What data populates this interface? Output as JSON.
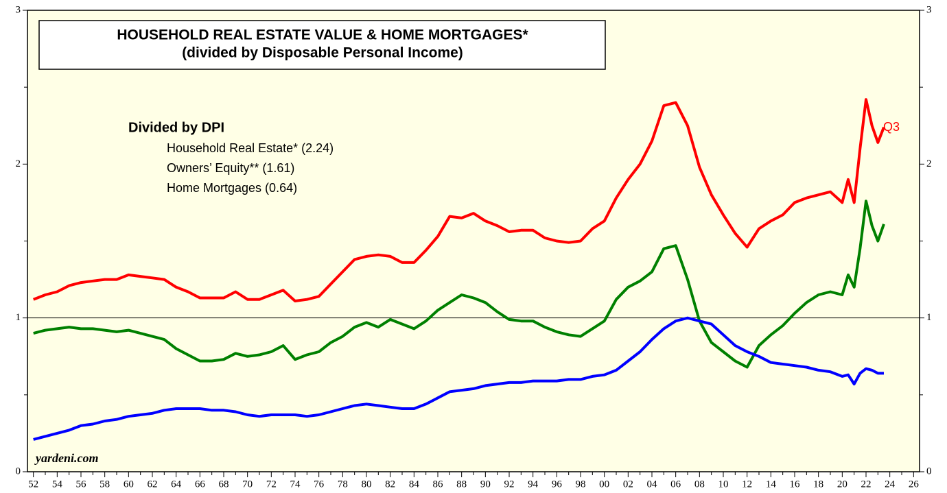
{
  "chart_data": {
    "type": "line",
    "title": "HOUSEHOLD REAL ESTATE VALUE & HOME MORTGAGES*",
    "subtitle": "(divided by Disposable Personal Income)",
    "legend_title": "Divided by DPI",
    "annotations": [
      "Q3",
      "yardeni.com"
    ],
    "x": [
      1952,
      1953,
      1954,
      1955,
      1956,
      1957,
      1958,
      1959,
      1960,
      1961,
      1962,
      1963,
      1964,
      1965,
      1966,
      1967,
      1968,
      1969,
      1970,
      1971,
      1972,
      1973,
      1974,
      1975,
      1976,
      1977,
      1978,
      1979,
      1980,
      1981,
      1982,
      1983,
      1984,
      1985,
      1986,
      1987,
      1988,
      1989,
      1990,
      1991,
      1992,
      1993,
      1994,
      1995,
      1996,
      1997,
      1998,
      1999,
      2000,
      2001,
      2002,
      2003,
      2004,
      2005,
      2006,
      2007,
      2008,
      2009,
      2010,
      2011,
      2012,
      2013,
      2014,
      2015,
      2016,
      2017,
      2018,
      2019,
      2020,
      2020.5,
      2021,
      2021.5,
      2022,
      2022.5,
      2023,
      2023.5
    ],
    "series": [
      {
        "name": "Household Real Estate* (2.24)",
        "color": "#ff0000",
        "values": [
          1.12,
          1.15,
          1.17,
          1.21,
          1.23,
          1.24,
          1.25,
          1.25,
          1.28,
          1.27,
          1.26,
          1.25,
          1.2,
          1.17,
          1.13,
          1.13,
          1.13,
          1.17,
          1.12,
          1.12,
          1.15,
          1.18,
          1.11,
          1.12,
          1.14,
          1.22,
          1.3,
          1.38,
          1.4,
          1.41,
          1.4,
          1.36,
          1.36,
          1.44,
          1.53,
          1.66,
          1.65,
          1.68,
          1.63,
          1.6,
          1.56,
          1.57,
          1.57,
          1.52,
          1.5,
          1.49,
          1.5,
          1.58,
          1.63,
          1.78,
          1.9,
          2.0,
          2.15,
          2.38,
          2.4,
          2.25,
          1.98,
          1.8,
          1.67,
          1.55,
          1.46,
          1.58,
          1.63,
          1.67,
          1.75,
          1.78,
          1.8,
          1.82,
          1.75,
          1.9,
          1.75,
          2.1,
          2.42,
          2.25,
          2.14,
          2.24
        ]
      },
      {
        "name": "Owners’ Equity** (1.61)",
        "color": "#008000",
        "values": [
          0.9,
          0.92,
          0.93,
          0.94,
          0.93,
          0.93,
          0.92,
          0.91,
          0.92,
          0.9,
          0.88,
          0.86,
          0.8,
          0.76,
          0.72,
          0.72,
          0.73,
          0.77,
          0.75,
          0.76,
          0.78,
          0.82,
          0.73,
          0.76,
          0.78,
          0.84,
          0.88,
          0.94,
          0.97,
          0.94,
          0.99,
          0.96,
          0.93,
          0.98,
          1.05,
          1.1,
          1.15,
          1.13,
          1.1,
          1.04,
          0.99,
          0.98,
          0.98,
          0.94,
          0.91,
          0.89,
          0.88,
          0.93,
          0.98,
          1.12,
          1.2,
          1.24,
          1.3,
          1.45,
          1.47,
          1.25,
          0.98,
          0.84,
          0.78,
          0.72,
          0.68,
          0.82,
          0.89,
          0.95,
          1.03,
          1.1,
          1.15,
          1.17,
          1.15,
          1.28,
          1.2,
          1.45,
          1.76,
          1.6,
          1.5,
          1.61
        ]
      },
      {
        "name": "Home Mortgages (0.64)",
        "color": "#0000ff",
        "values": [
          0.21,
          0.23,
          0.25,
          0.27,
          0.3,
          0.31,
          0.33,
          0.34,
          0.36,
          0.37,
          0.38,
          0.4,
          0.41,
          0.41,
          0.41,
          0.4,
          0.4,
          0.39,
          0.37,
          0.36,
          0.37,
          0.37,
          0.37,
          0.36,
          0.37,
          0.39,
          0.41,
          0.43,
          0.44,
          0.43,
          0.42,
          0.41,
          0.41,
          0.44,
          0.48,
          0.52,
          0.53,
          0.54,
          0.56,
          0.57,
          0.58,
          0.58,
          0.59,
          0.59,
          0.59,
          0.6,
          0.6,
          0.62,
          0.63,
          0.66,
          0.72,
          0.78,
          0.86,
          0.93,
          0.98,
          1.0,
          0.98,
          0.96,
          0.89,
          0.82,
          0.78,
          0.75,
          0.71,
          0.7,
          0.69,
          0.68,
          0.66,
          0.65,
          0.62,
          0.63,
          0.57,
          0.64,
          0.67,
          0.66,
          0.64,
          0.64
        ]
      }
    ],
    "xlim": [
      1951.5,
      2026.5
    ],
    "xticks": [
      {
        "value": 1952,
        "label": "52"
      },
      {
        "value": 1954,
        "label": "54"
      },
      {
        "value": 1956,
        "label": "56"
      },
      {
        "value": 1958,
        "label": "58"
      },
      {
        "value": 1960,
        "label": "60"
      },
      {
        "value": 1962,
        "label": "62"
      },
      {
        "value": 1964,
        "label": "64"
      },
      {
        "value": 1966,
        "label": "66"
      },
      {
        "value": 1968,
        "label": "68"
      },
      {
        "value": 1970,
        "label": "70"
      },
      {
        "value": 1972,
        "label": "72"
      },
      {
        "value": 1974,
        "label": "74"
      },
      {
        "value": 1976,
        "label": "76"
      },
      {
        "value": 1978,
        "label": "78"
      },
      {
        "value": 1980,
        "label": "80"
      },
      {
        "value": 1982,
        "label": "82"
      },
      {
        "value": 1984,
        "label": "84"
      },
      {
        "value": 1986,
        "label": "86"
      },
      {
        "value": 1988,
        "label": "88"
      },
      {
        "value": 1990,
        "label": "90"
      },
      {
        "value": 1992,
        "label": "92"
      },
      {
        "value": 1994,
        "label": "94"
      },
      {
        "value": 1996,
        "label": "96"
      },
      {
        "value": 1998,
        "label": "98"
      },
      {
        "value": 2000,
        "label": "00"
      },
      {
        "value": 2002,
        "label": "02"
      },
      {
        "value": 2004,
        "label": "04"
      },
      {
        "value": 2006,
        "label": "06"
      },
      {
        "value": 2008,
        "label": "08"
      },
      {
        "value": 2010,
        "label": "10"
      },
      {
        "value": 2012,
        "label": "12"
      },
      {
        "value": 2014,
        "label": "14"
      },
      {
        "value": 2016,
        "label": "16"
      },
      {
        "value": 2018,
        "label": "18"
      },
      {
        "value": 2020,
        "label": "20"
      },
      {
        "value": 2022,
        "label": "22"
      },
      {
        "value": 2024,
        "label": "24"
      },
      {
        "value": 2026,
        "label": "26"
      }
    ],
    "xminor": [
      1953,
      1955,
      1957,
      1959,
      1961,
      1963,
      1965,
      1967,
      1969,
      1971,
      1973,
      1975,
      1977,
      1979,
      1981,
      1983,
      1985,
      1987,
      1989,
      1991,
      1993,
      1995,
      1997,
      1999,
      2001,
      2003,
      2005,
      2007,
      2009,
      2011,
      2013,
      2015,
      2017,
      2019,
      2021,
      2023,
      2025
    ],
    "ylim": [
      0,
      3
    ],
    "yticks": [
      0,
      1,
      2,
      3
    ],
    "yminor": [
      0.5,
      1.5,
      2.5
    ],
    "hline": 1
  }
}
